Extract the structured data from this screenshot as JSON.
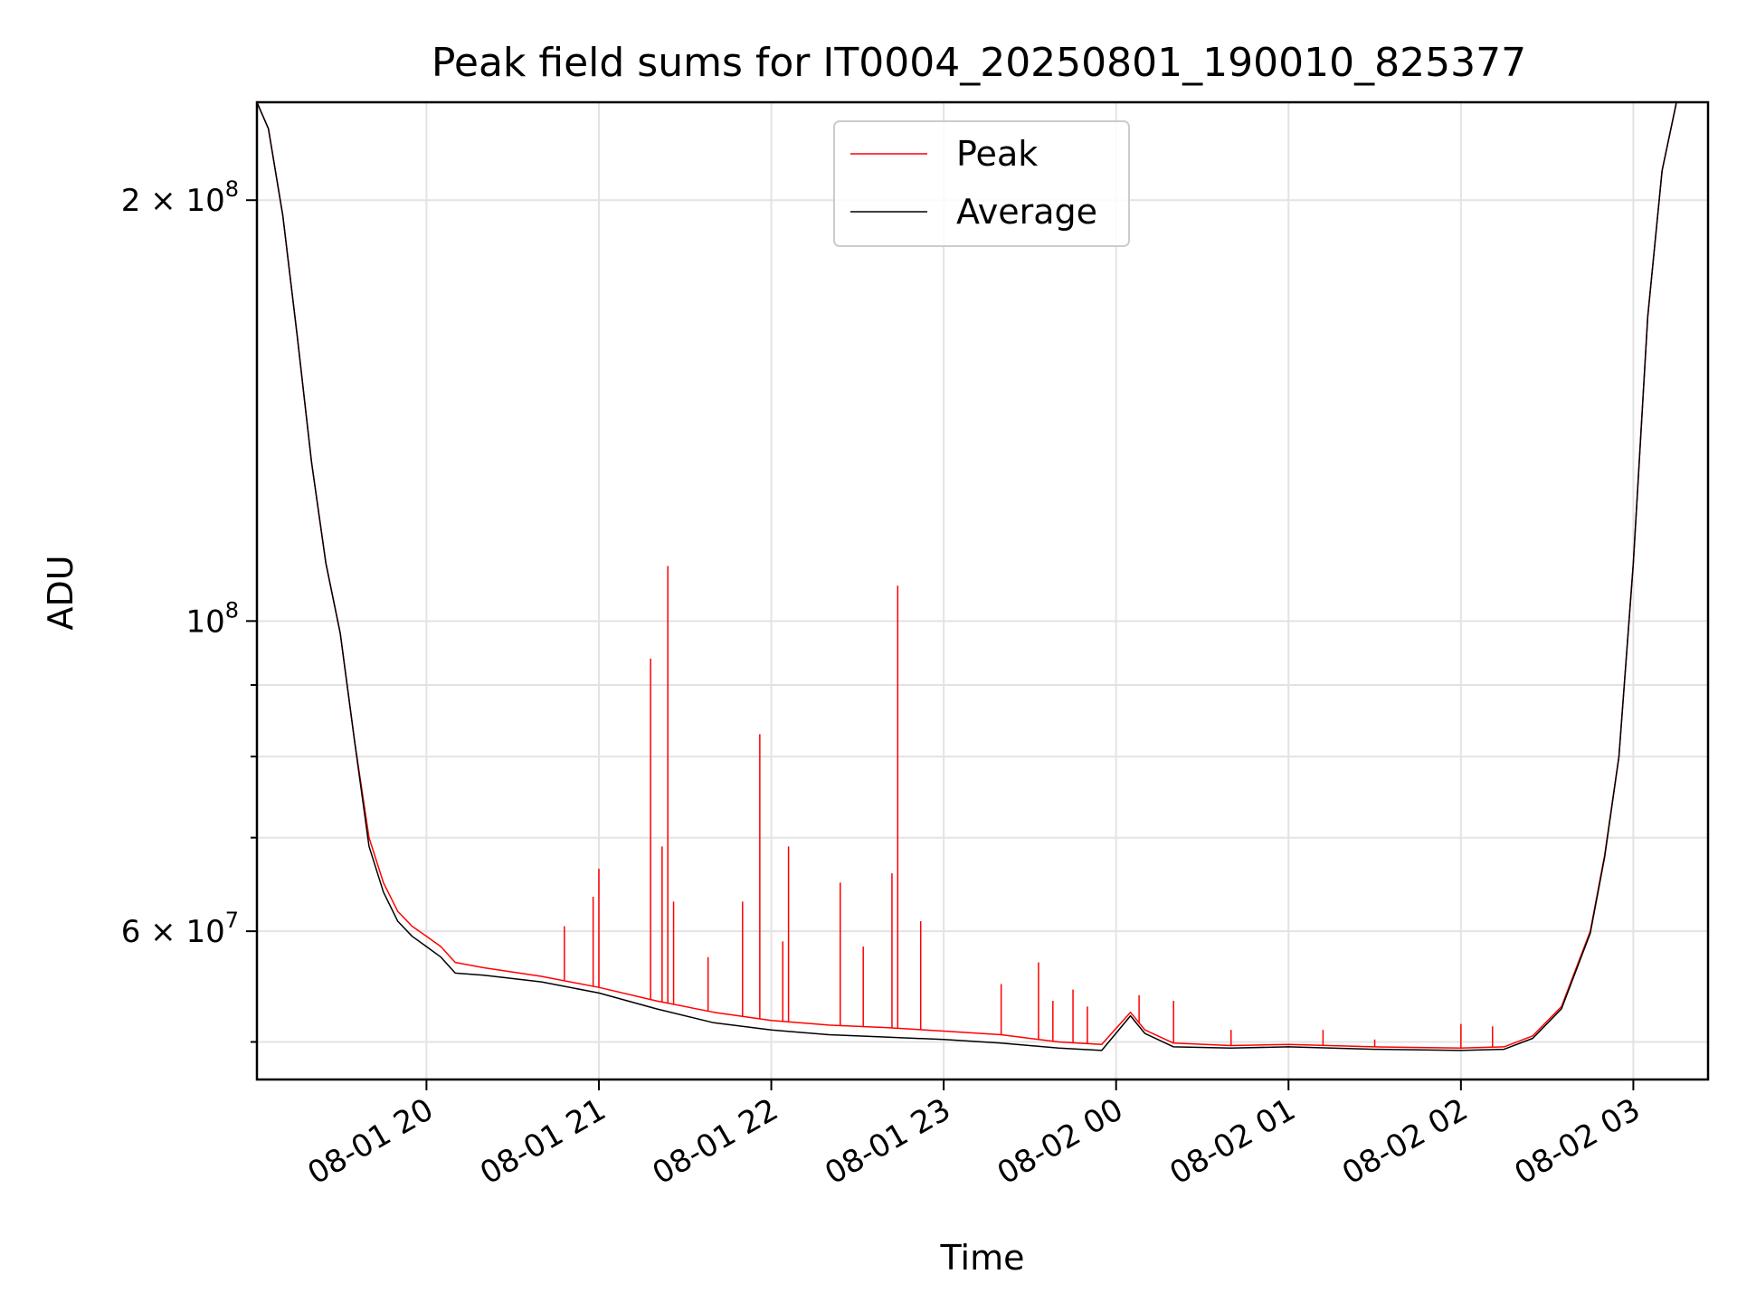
{
  "chart_data": {
    "type": "line",
    "title": "Peak field sums for IT0004_20250801_190010_825377",
    "xlabel": "Time",
    "ylabel": "ADU",
    "y_scale": "log",
    "ylim": [
      47000000,
      235000000
    ],
    "xlim": [
      "2025-08-01 19:01",
      "2025-08-02 03:26"
    ],
    "grid": true,
    "legend": "top-center",
    "x_ticks": [
      {
        "value": "2025-08-01 20:00",
        "label": "08-01 20"
      },
      {
        "value": "2025-08-01 21:00",
        "label": "08-01 21"
      },
      {
        "value": "2025-08-01 22:00",
        "label": "08-01 22"
      },
      {
        "value": "2025-08-01 23:00",
        "label": "08-01 23"
      },
      {
        "value": "2025-08-02 00:00",
        "label": "08-02 00"
      },
      {
        "value": "2025-08-02 01:00",
        "label": "08-02 01"
      },
      {
        "value": "2025-08-02 02:00",
        "label": "08-02 02"
      },
      {
        "value": "2025-08-02 03:00",
        "label": "08-02 03"
      }
    ],
    "y_ticks": [
      {
        "value": 200000000,
        "base": "2 × 10",
        "exp": "8"
      },
      {
        "value": 100000000,
        "base": "10",
        "exp": "8"
      },
      {
        "value": 60000000,
        "base": "6 × 10",
        "exp": "7"
      }
    ],
    "y_minor_ticks": [
      50000000,
      70000000,
      80000000,
      90000000
    ],
    "series": [
      {
        "name": "Peak",
        "color": "#ff0000",
        "x": [
          "2025-08-01 19:01",
          "2025-08-01 19:05",
          "2025-08-01 19:10",
          "2025-08-01 19:15",
          "2025-08-01 19:20",
          "2025-08-01 19:25",
          "2025-08-01 19:30",
          "2025-08-01 19:35",
          "2025-08-01 19:40",
          "2025-08-01 19:45",
          "2025-08-01 19:50",
          "2025-08-01 19:55",
          "2025-08-01 20:00",
          "2025-08-01 20:05",
          "2025-08-01 20:10",
          "2025-08-01 20:20",
          "2025-08-01 20:40",
          "2025-08-01 21:00",
          "2025-08-01 21:20",
          "2025-08-01 21:40",
          "2025-08-01 22:00",
          "2025-08-01 22:20",
          "2025-08-01 22:40",
          "2025-08-01 23:00",
          "2025-08-01 23:20",
          "2025-08-01 23:40",
          "2025-08-01 23:55",
          "2025-08-02 00:05",
          "2025-08-02 00:10",
          "2025-08-02 00:20",
          "2025-08-02 00:40",
          "2025-08-02 01:00",
          "2025-08-02 01:30",
          "2025-08-02 02:00",
          "2025-08-02 02:15",
          "2025-08-02 02:25",
          "2025-08-02 02:35",
          "2025-08-02 02:45",
          "2025-08-02 02:50",
          "2025-08-02 02:55",
          "2025-08-02 03:00",
          "2025-08-02 03:05",
          "2025-08-02 03:10",
          "2025-08-02 03:15"
        ],
        "y": [
          235000000,
          225000000,
          195000000,
          160000000,
          130000000,
          110000000,
          98000000,
          82000000,
          70000000,
          65000000,
          62000000,
          60500000,
          59500000,
          58500000,
          57000000,
          56500000,
          55700000,
          54700000,
          53500000,
          52500000,
          51800000,
          51400000,
          51200000,
          50900000,
          50600000,
          50000000,
          49800000,
          52500000,
          51000000,
          49900000,
          49700000,
          49800000,
          49600000,
          49500000,
          49600000,
          50500000,
          53000000,
          60000000,
          68000000,
          80000000,
          110000000,
          165000000,
          210000000,
          235000000
        ],
        "spikes": [
          {
            "x": "2025-08-01 20:48",
            "y": 60500000
          },
          {
            "x": "2025-08-01 20:58",
            "y": 63500000
          },
          {
            "x": "2025-08-01 21:00",
            "y": 66500000
          },
          {
            "x": "2025-08-01 21:18",
            "y": 94000000
          },
          {
            "x": "2025-08-01 21:22",
            "y": 69000000
          },
          {
            "x": "2025-08-01 21:24",
            "y": 109500000
          },
          {
            "x": "2025-08-01 21:26",
            "y": 63000000
          },
          {
            "x": "2025-08-01 21:38",
            "y": 57500000
          },
          {
            "x": "2025-08-01 21:50",
            "y": 63000000
          },
          {
            "x": "2025-08-01 21:56",
            "y": 83000000
          },
          {
            "x": "2025-08-01 22:06",
            "y": 69000000
          },
          {
            "x": "2025-08-01 22:04",
            "y": 59000000
          },
          {
            "x": "2025-08-01 22:24",
            "y": 65000000
          },
          {
            "x": "2025-08-01 22:32",
            "y": 58500000
          },
          {
            "x": "2025-08-01 22:42",
            "y": 66000000
          },
          {
            "x": "2025-08-01 22:44",
            "y": 106000000
          },
          {
            "x": "2025-08-01 22:52",
            "y": 61000000
          },
          {
            "x": "2025-08-01 23:20",
            "y": 55000000
          },
          {
            "x": "2025-08-01 23:33",
            "y": 57000000
          },
          {
            "x": "2025-08-01 23:38",
            "y": 53500000
          },
          {
            "x": "2025-08-01 23:45",
            "y": 54500000
          },
          {
            "x": "2025-08-01 23:50",
            "y": 53000000
          },
          {
            "x": "2025-08-02 00:08",
            "y": 54000000
          },
          {
            "x": "2025-08-02 00:20",
            "y": 53500000
          },
          {
            "x": "2025-08-02 00:40",
            "y": 51000000
          },
          {
            "x": "2025-08-02 01:12",
            "y": 51000000
          },
          {
            "x": "2025-08-02 01:30",
            "y": 50200000
          },
          {
            "x": "2025-08-02 02:00",
            "y": 51500000
          },
          {
            "x": "2025-08-02 02:11",
            "y": 51300000
          }
        ]
      },
      {
        "name": "Average",
        "color": "#000000",
        "x": [
          "2025-08-01 19:01",
          "2025-08-01 19:05",
          "2025-08-01 19:10",
          "2025-08-01 19:15",
          "2025-08-01 19:20",
          "2025-08-01 19:25",
          "2025-08-01 19:30",
          "2025-08-01 19:35",
          "2025-08-01 19:40",
          "2025-08-01 19:45",
          "2025-08-01 19:50",
          "2025-08-01 19:55",
          "2025-08-01 20:00",
          "2025-08-01 20:05",
          "2025-08-01 20:10",
          "2025-08-01 20:20",
          "2025-08-01 20:40",
          "2025-08-01 21:00",
          "2025-08-01 21:20",
          "2025-08-01 21:40",
          "2025-08-01 22:00",
          "2025-08-01 22:20",
          "2025-08-01 22:40",
          "2025-08-01 23:00",
          "2025-08-01 23:20",
          "2025-08-01 23:40",
          "2025-08-01 23:55",
          "2025-08-02 00:05",
          "2025-08-02 00:10",
          "2025-08-02 00:20",
          "2025-08-02 00:40",
          "2025-08-02 01:00",
          "2025-08-02 01:30",
          "2025-08-02 02:00",
          "2025-08-02 02:15",
          "2025-08-02 02:25",
          "2025-08-02 02:35",
          "2025-08-02 02:45",
          "2025-08-02 02:50",
          "2025-08-02 02:55",
          "2025-08-02 03:00",
          "2025-08-02 03:05",
          "2025-08-02 03:10",
          "2025-08-02 03:15"
        ],
        "y": [
          235000000,
          225000000,
          195000000,
          160000000,
          130000000,
          110000000,
          98000000,
          82000000,
          69000000,
          64000000,
          61000000,
          59500000,
          58500000,
          57500000,
          56000000,
          55800000,
          55200000,
          54200000,
          52800000,
          51600000,
          51000000,
          50600000,
          50400000,
          50200000,
          49900000,
          49500000,
          49300000,
          52200000,
          50700000,
          49600000,
          49500000,
          49600000,
          49400000,
          49300000,
          49400000,
          50300000,
          52800000,
          59800000,
          67800000,
          80000000,
          110000000,
          165000000,
          210000000,
          235000000
        ]
      }
    ]
  }
}
